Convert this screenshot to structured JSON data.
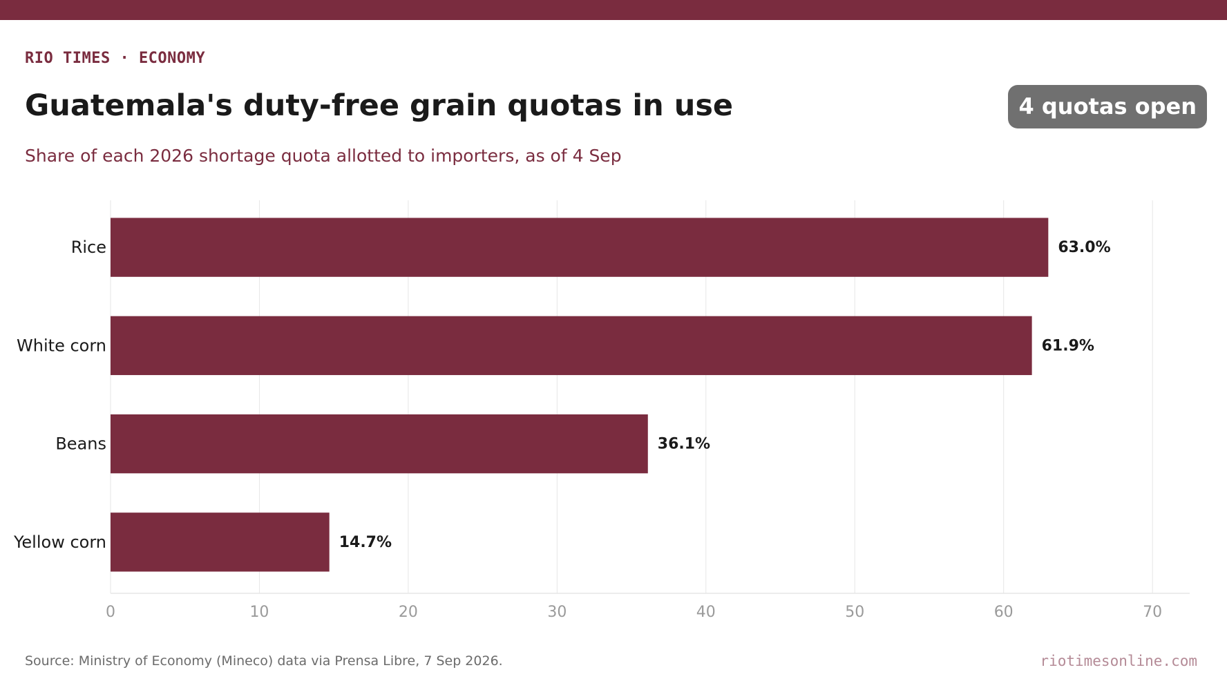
{
  "header": {
    "kicker": "RIO TIMES · ECONOMY",
    "title": "Guatemala's duty-free grain quotas in use",
    "badge": "4 quotas open",
    "subtitle": "Share of each 2026 shortage quota allotted to importers, as of 4 Sep"
  },
  "footer": {
    "source": "Source: Ministry of Economy (Mineco) data via Prensa Libre, 7 Sep 2026.",
    "site": "riotimesonline.com"
  },
  "colors": {
    "brand": "#7a2c3f",
    "badge": "#707070",
    "grid": "#e6e6e6",
    "tick_label": "#9a9a9a",
    "category_label": "#1a1a1a",
    "value_label": "#1a1a1a"
  },
  "chart_data": {
    "type": "bar",
    "orientation": "horizontal",
    "categories": [
      "Rice",
      "White corn",
      "Beans",
      "Yellow corn"
    ],
    "values": [
      63.0,
      61.9,
      36.1,
      14.7
    ],
    "value_labels": [
      "63.0%",
      "61.9%",
      "36.1%",
      "14.7%"
    ],
    "xlim": [
      0,
      72.5
    ],
    "xticks": [
      0,
      10,
      20,
      30,
      40,
      50,
      60,
      70
    ],
    "xtick_labels": [
      "0",
      "10",
      "20",
      "30",
      "40",
      "50",
      "60",
      "70"
    ],
    "grid": true,
    "legend": "none"
  }
}
